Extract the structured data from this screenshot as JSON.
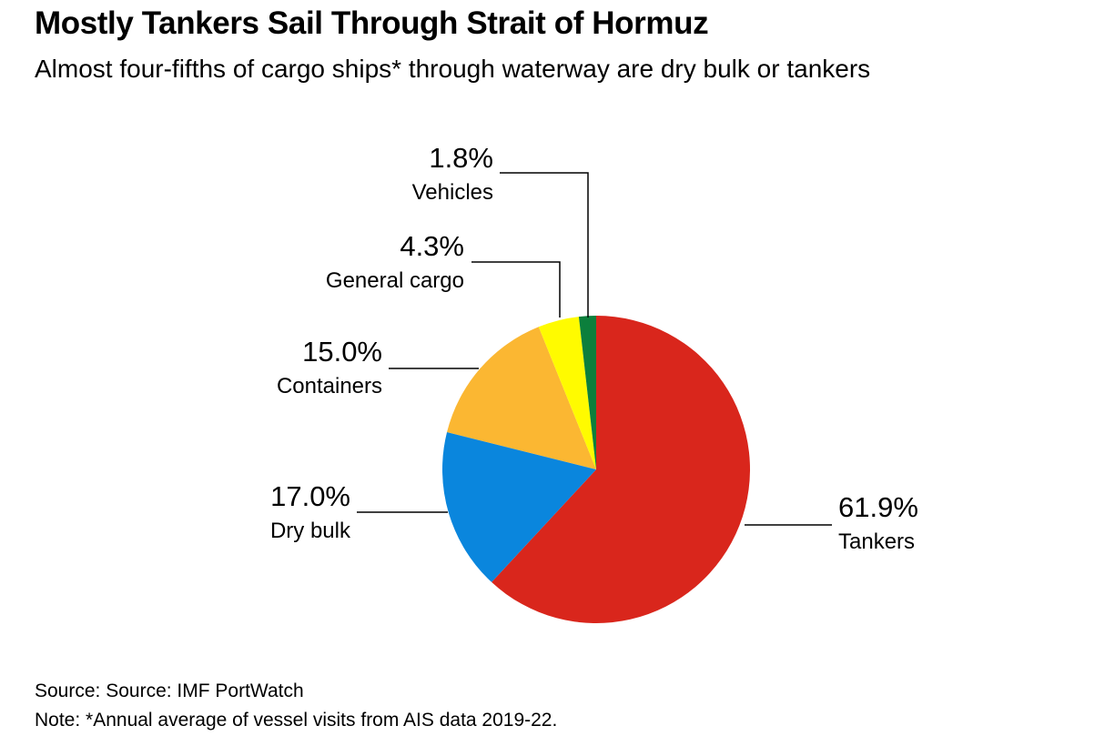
{
  "header": {
    "title": "Mostly Tankers Sail Through Strait of Hormuz",
    "subtitle": "Almost four-fifths of cargo ships* through waterway are dry bulk or tankers"
  },
  "chart_data": {
    "type": "pie",
    "title": "Mostly Tankers Sail Through Strait of Hormuz",
    "subtitle": "Almost four-fifths of cargo ships* through waterway are dry bulk or tankers",
    "unit": "%",
    "legend": "none",
    "slices": [
      {
        "label": "Tankers",
        "value": 61.9,
        "display": "61.9%",
        "color": "#d9261c"
      },
      {
        "label": "Dry bulk",
        "value": 17.0,
        "display": "17.0%",
        "color": "#0a86dd"
      },
      {
        "label": "Containers",
        "value": 15.0,
        "display": "15.0%",
        "color": "#fbb732"
      },
      {
        "label": "General cargo",
        "value": 4.3,
        "display": "4.3%",
        "color": "#fffb00"
      },
      {
        "label": "Vehicles",
        "value": 1.8,
        "display": "1.8%",
        "color": "#0c7f3c"
      }
    ]
  },
  "footer": {
    "source": "Source: Source: IMF PortWatch",
    "note": "Note: *Annual average of vessel visits from AIS data 2019-22."
  }
}
